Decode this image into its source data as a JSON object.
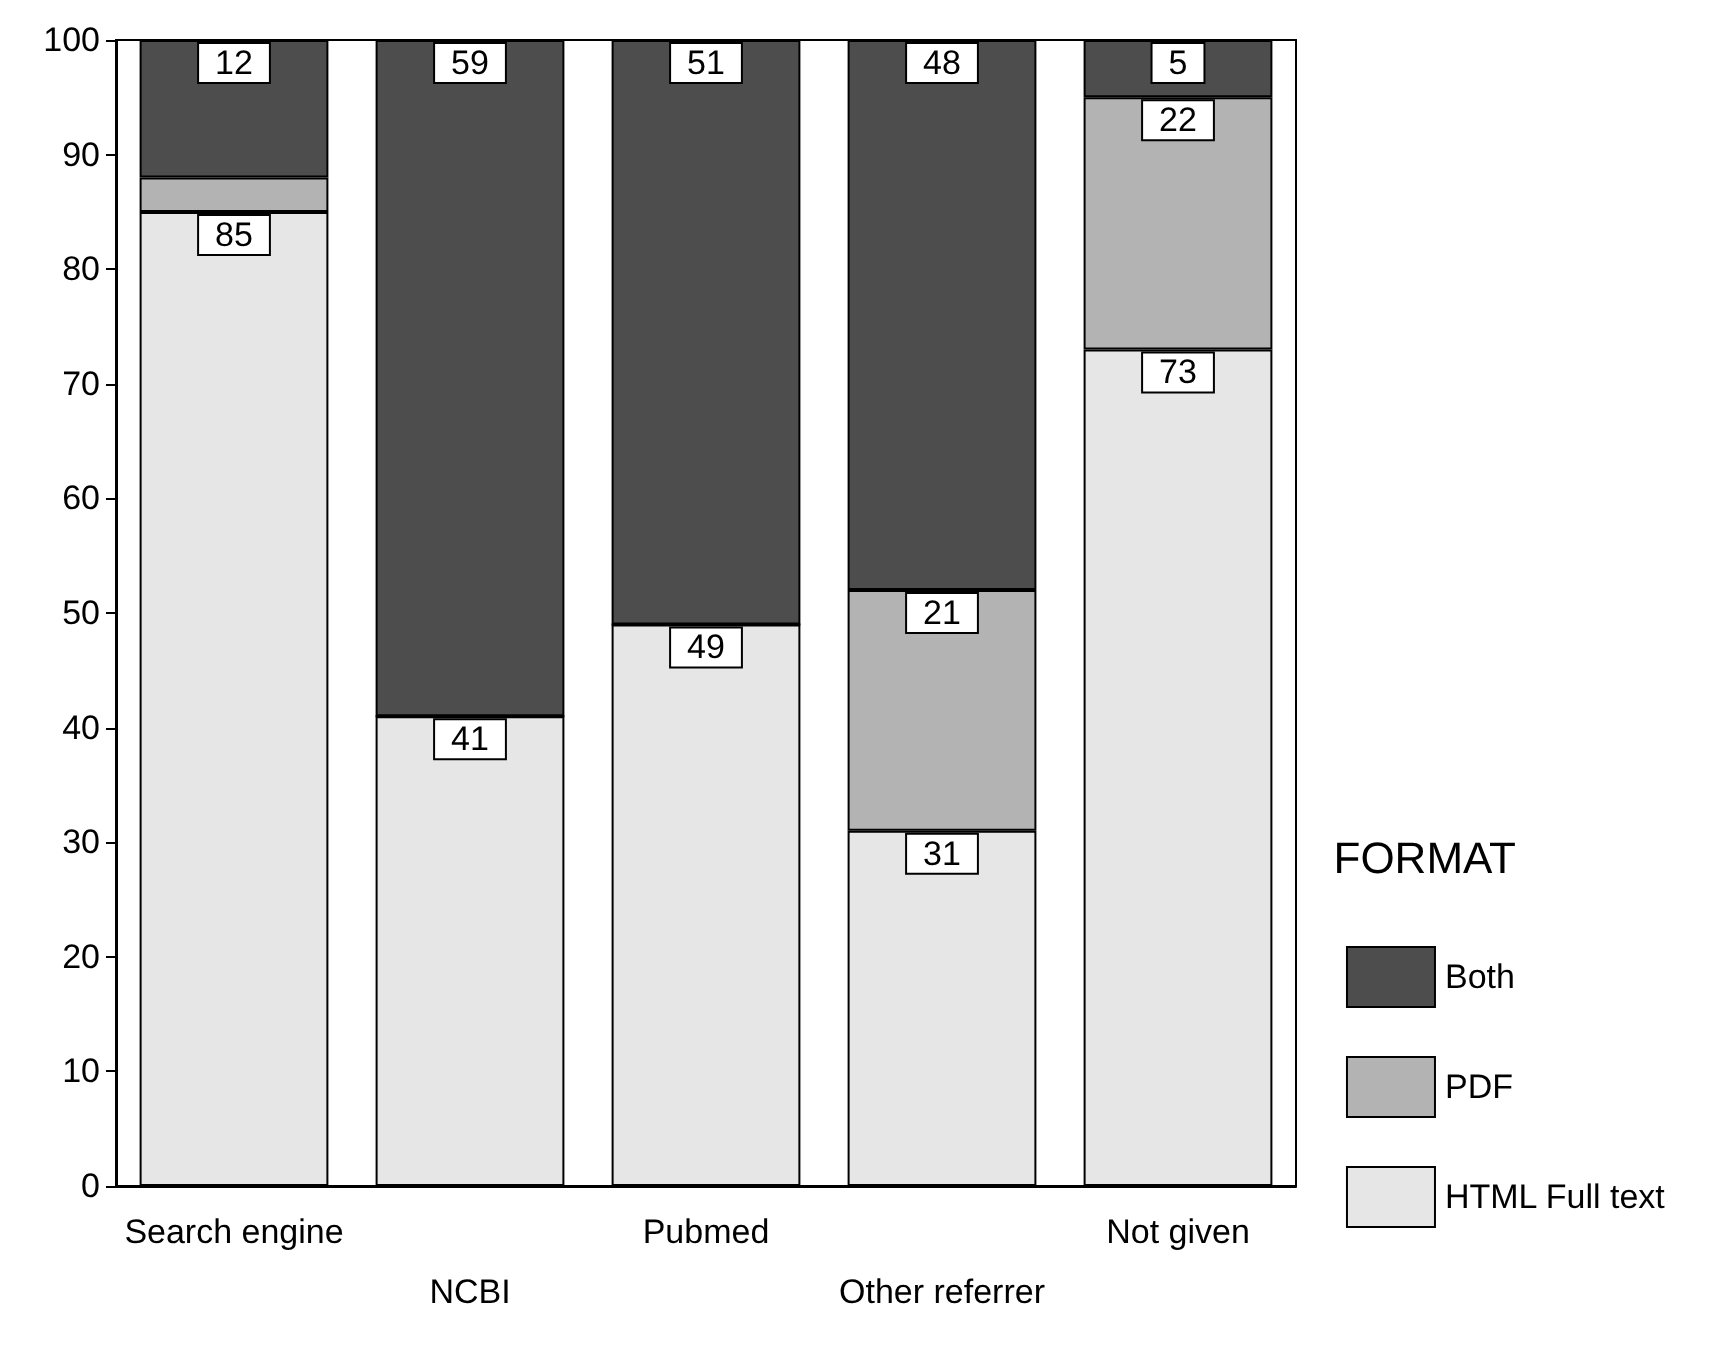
{
  "chart_data": {
    "type": "bar",
    "stacked": true,
    "categories": [
      "Search engine",
      "NCBI",
      "Pubmed",
      "Other referrer",
      "Not given"
    ],
    "series": [
      {
        "name": "HTML Full text",
        "color": "#e6e6e6",
        "values": [
          85,
          41,
          49,
          31,
          73
        ],
        "value_labels": [
          "85",
          "41",
          "49",
          "31",
          "73"
        ]
      },
      {
        "name": "PDF",
        "color": "#b3b3b3",
        "values": [
          3,
          0,
          0,
          21,
          22
        ],
        "value_labels": [
          null,
          null,
          null,
          "21",
          "22"
        ]
      },
      {
        "name": "Both",
        "color": "#4d4d4d",
        "values": [
          12,
          59,
          51,
          48,
          5
        ],
        "value_labels": [
          "12",
          "59",
          "51",
          "48",
          "5"
        ]
      }
    ],
    "ylim": [
      0,
      100
    ],
    "yticks": [
      0,
      10,
      20,
      30,
      40,
      50,
      60,
      70,
      80,
      90,
      100
    ],
    "grid": false,
    "legend": "right",
    "legend_title": "FORMAT"
  }
}
